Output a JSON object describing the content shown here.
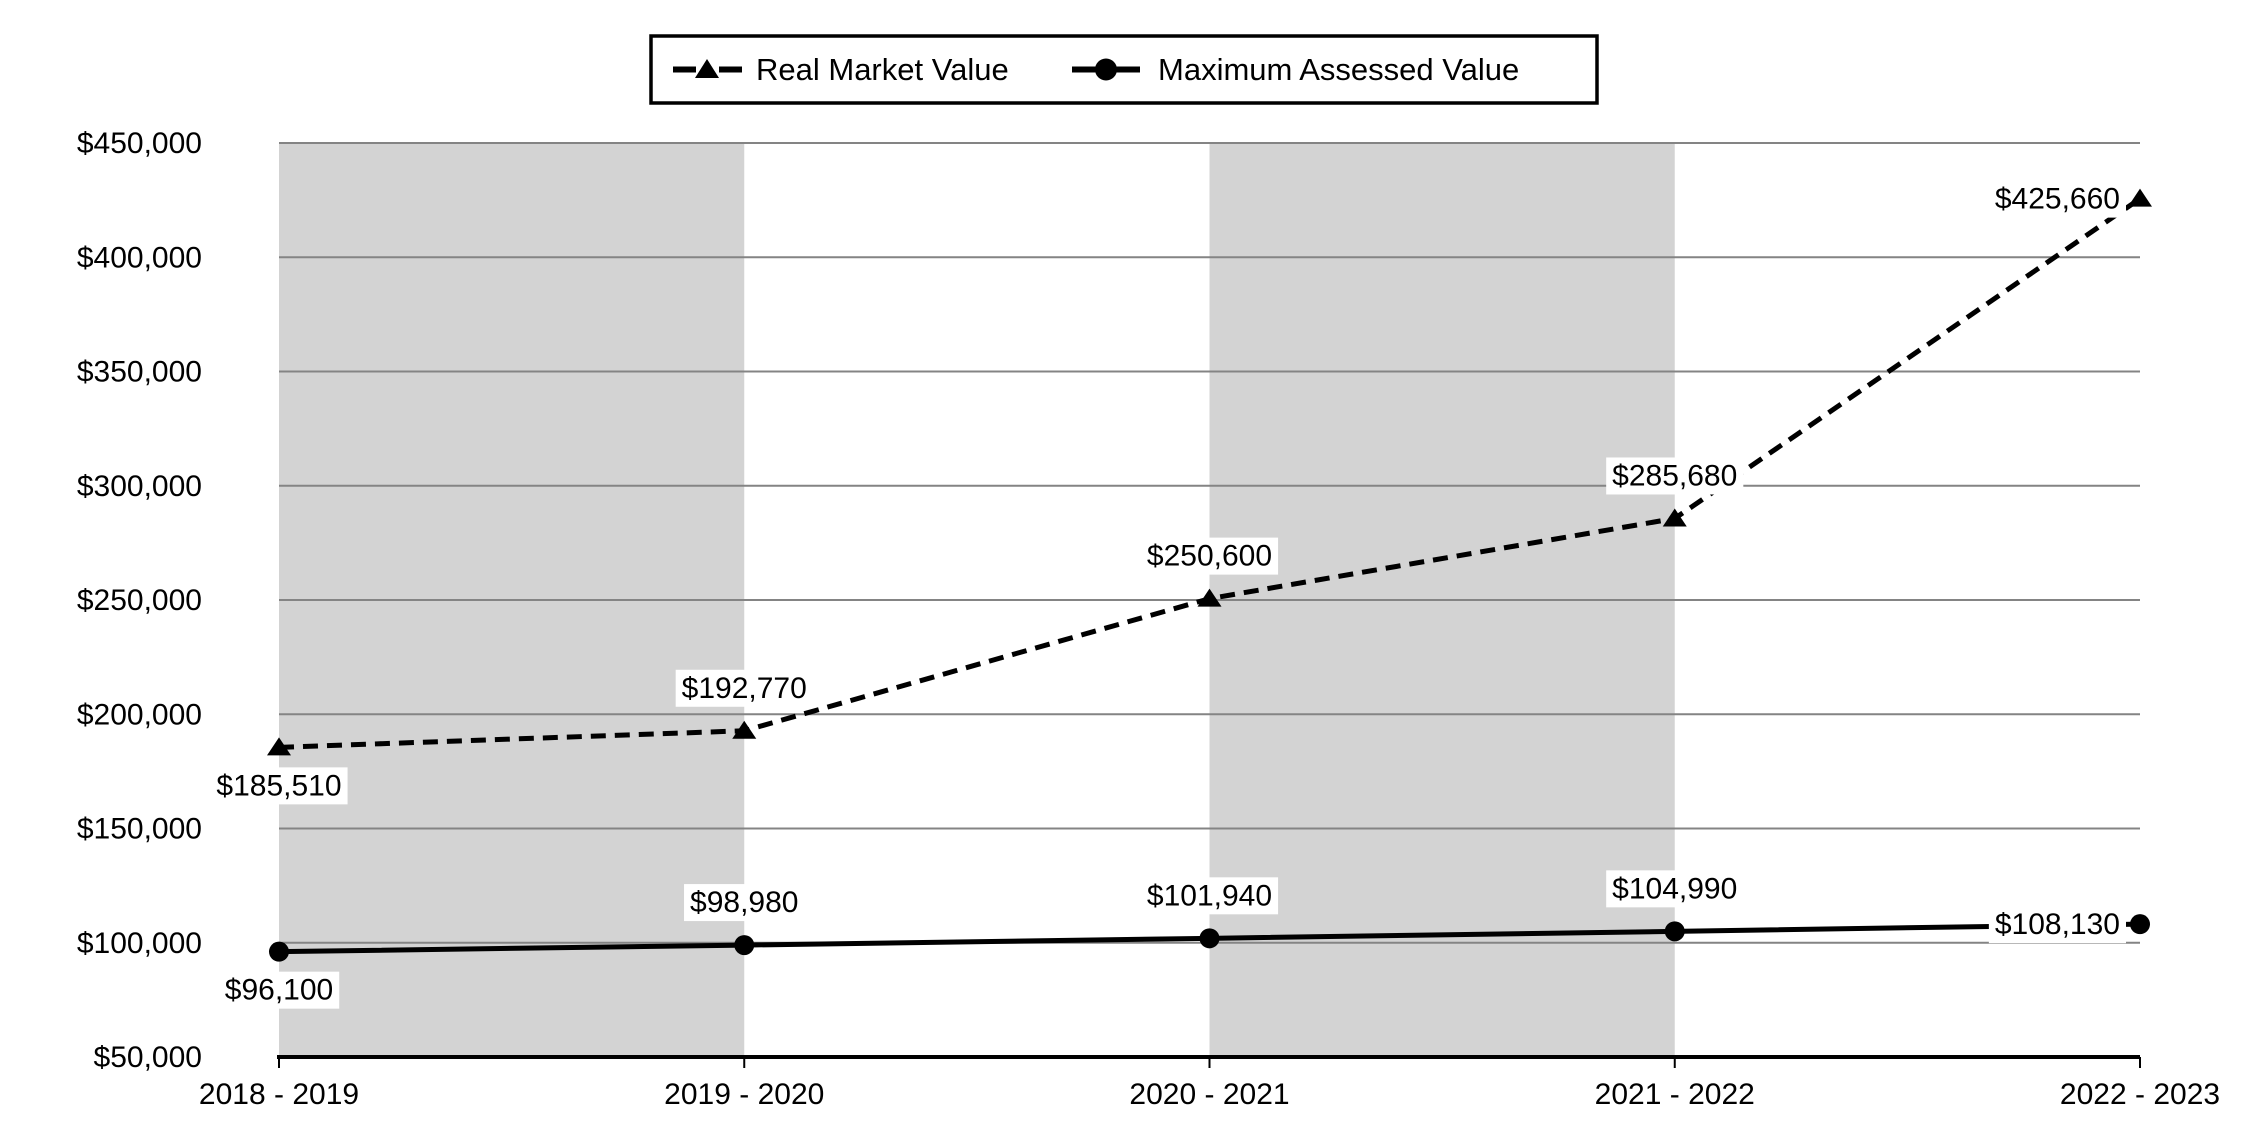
{
  "chart_data": {
    "type": "line",
    "title": "",
    "categories": [
      "2018 - 2019",
      "2019 - 2020",
      "2020 - 2021",
      "2021 - 2022",
      "2022 - 2023"
    ],
    "series": [
      {
        "name": "Real Market Value",
        "style": "dashed",
        "marker": "triangle",
        "values": [
          185510,
          192770,
          250600,
          285680,
          425660
        ],
        "labels": [
          "$185,510",
          "$192,770",
          "$250,600",
          "$285,680",
          "$425,660"
        ]
      },
      {
        "name": "Maximum Assessed Value",
        "style": "solid",
        "marker": "circle",
        "values": [
          96100,
          98980,
          101940,
          104990,
          108130
        ],
        "labels": [
          "$96,100",
          "$98,980",
          "$101,940",
          "$104,990",
          "$108,130"
        ]
      }
    ],
    "y_axis": {
      "min": 50000,
      "max": 450000,
      "step": 50000,
      "ticks": [
        {
          "value": 50000,
          "label": "$50,000"
        },
        {
          "value": 100000,
          "label": "$100,000"
        },
        {
          "value": 150000,
          "label": "$150,000"
        },
        {
          "value": 200000,
          "label": "$200,000"
        },
        {
          "value": 250000,
          "label": "$250,000"
        },
        {
          "value": 300000,
          "label": "$300,000"
        },
        {
          "value": 350000,
          "label": "$350,000"
        },
        {
          "value": 400000,
          "label": "$400,000"
        },
        {
          "value": 450000,
          "label": "$450,000"
        }
      ]
    },
    "legend": {
      "position": "top-center",
      "entries": [
        {
          "label": "Real Market Value",
          "line": "dashed",
          "marker": "triangle"
        },
        {
          "label": "Maximum Assessed Value",
          "line": "solid",
          "marker": "circle"
        }
      ]
    },
    "plot_bands": {
      "indices": [
        [
          0,
          1
        ],
        [
          2,
          3
        ]
      ]
    },
    "colors": {
      "series": "#000000",
      "band": "#d3d3d3",
      "gridline": "#848484",
      "axis": "#000000",
      "label_background": "#ffffff",
      "legend_border": "#000000"
    },
    "grid": true,
    "xlabel": "",
    "ylabel": "",
    "ylim": [
      50000,
      450000
    ]
  }
}
